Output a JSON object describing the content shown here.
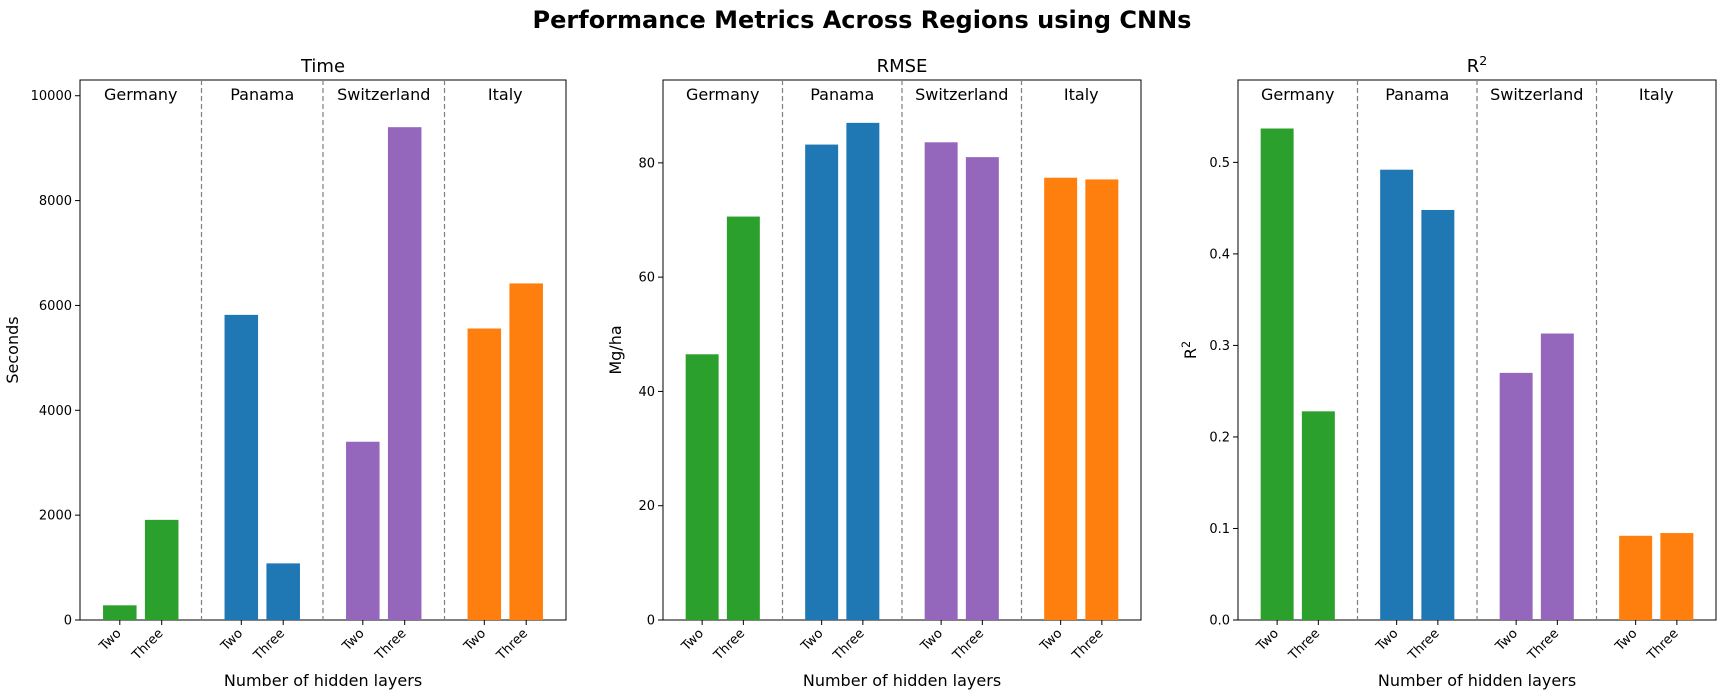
{
  "figure": {
    "title": "Performance Metrics Across Regions using CNNs"
  },
  "chart_data": [
    {
      "type": "bar",
      "title": "Time",
      "title_sup": "",
      "xlabel": "Number of hidden layers",
      "ylabel": "Seconds",
      "ylabel_sup": "",
      "ylim": [
        0,
        10300
      ],
      "yticks": [
        0,
        2000,
        4000,
        6000,
        8000,
        10000
      ],
      "tick_decimals": 0,
      "categories": [
        "Two",
        "Three"
      ],
      "groups": [
        {
          "name": "Germany",
          "color": "#2ca02c",
          "values": [
            280,
            1910
          ]
        },
        {
          "name": "Panama",
          "color": "#1f77b4",
          "values": [
            5820,
            1080
          ]
        },
        {
          "name": "Switzerland",
          "color": "#9467bd",
          "values": [
            3400,
            9400
          ]
        },
        {
          "name": "Italy",
          "color": "#ff7f0e",
          "values": [
            5560,
            6420
          ]
        }
      ],
      "separators": "dashed",
      "grid": false
    },
    {
      "type": "bar",
      "title": "RMSE",
      "title_sup": "",
      "xlabel": "Number of hidden layers",
      "ylabel": "Mg/ha",
      "ylabel_sup": "",
      "ylim": [
        0,
        94.5
      ],
      "yticks": [
        0,
        20,
        40,
        60,
        80
      ],
      "tick_decimals": 0,
      "categories": [
        "Two",
        "Three"
      ],
      "groups": [
        {
          "name": "Germany",
          "color": "#2ca02c",
          "values": [
            46.5,
            70.6
          ]
        },
        {
          "name": "Panama",
          "color": "#1f77b4",
          "values": [
            83.2,
            87.0
          ]
        },
        {
          "name": "Switzerland",
          "color": "#9467bd",
          "values": [
            83.6,
            81.0
          ]
        },
        {
          "name": "Italy",
          "color": "#ff7f0e",
          "values": [
            77.4,
            77.1
          ]
        }
      ],
      "separators": "dashed",
      "grid": false
    },
    {
      "type": "bar",
      "title": "R",
      "title_sup": "2",
      "xlabel": "Number of hidden layers",
      "ylabel": "R",
      "ylabel_sup": "2",
      "ylim": [
        0,
        0.59
      ],
      "yticks": [
        0.0,
        0.1,
        0.2,
        0.3,
        0.4,
        0.5
      ],
      "tick_decimals": 1,
      "categories": [
        "Two",
        "Three"
      ],
      "groups": [
        {
          "name": "Germany",
          "color": "#2ca02c",
          "values": [
            0.537,
            0.228
          ]
        },
        {
          "name": "Panama",
          "color": "#1f77b4",
          "values": [
            0.492,
            0.448
          ]
        },
        {
          "name": "Switzerland",
          "color": "#9467bd",
          "values": [
            0.27,
            0.313
          ]
        },
        {
          "name": "Italy",
          "color": "#ff7f0e",
          "values": [
            0.092,
            0.095
          ]
        }
      ],
      "separators": "dashed",
      "grid": false
    }
  ]
}
